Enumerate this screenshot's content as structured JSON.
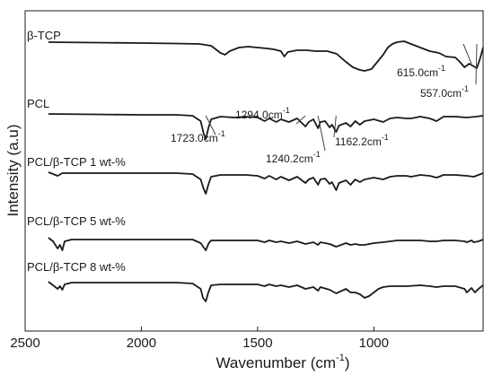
{
  "chart_data": {
    "type": "line",
    "title": "",
    "xlabel": "Wavenumber",
    "xlabel_unit": "cm",
    "xlabel_unit_exp": "-1",
    "ylabel": "Intensity (a.u)",
    "xlim": [
      2500,
      530
    ],
    "x_reversed": true,
    "xticks": [
      2500,
      2000,
      1500,
      1000
    ],
    "xtick_labels": [
      "2500",
      "2000",
      "1500",
      "1000"
    ],
    "grid": false,
    "series": [
      {
        "name": "β-TCP",
        "points": [
          [
            2400,
            0
          ],
          [
            2200,
            0.5
          ],
          [
            2000,
            1
          ],
          [
            1850,
            1.5
          ],
          [
            1750,
            2
          ],
          [
            1700,
            4
          ],
          [
            1660,
            12
          ],
          [
            1640,
            14
          ],
          [
            1620,
            10
          ],
          [
            1580,
            6
          ],
          [
            1540,
            5
          ],
          [
            1500,
            6
          ],
          [
            1460,
            7
          ],
          [
            1430,
            8
          ],
          [
            1400,
            10
          ],
          [
            1385,
            16
          ],
          [
            1370,
            11
          ],
          [
            1330,
            9
          ],
          [
            1290,
            9
          ],
          [
            1250,
            10
          ],
          [
            1200,
            10
          ],
          [
            1160,
            13
          ],
          [
            1120,
            22
          ],
          [
            1090,
            28
          ],
          [
            1060,
            31
          ],
          [
            1040,
            32
          ],
          [
            1010,
            30
          ],
          [
            985,
            22
          ],
          [
            960,
            14
          ],
          [
            940,
            6
          ],
          [
            920,
            2
          ],
          [
            900,
            0
          ],
          [
            870,
            -1
          ],
          [
            840,
            2
          ],
          [
            800,
            6
          ],
          [
            760,
            10
          ],
          [
            720,
            12
          ],
          [
            690,
            16
          ],
          [
            650,
            17
          ],
          [
            630,
            22
          ],
          [
            610,
            28
          ],
          [
            590,
            24
          ],
          [
            570,
            27
          ],
          [
            557,
            29
          ],
          [
            545,
            20
          ],
          [
            530,
            6
          ]
        ]
      },
      {
        "name": "PCL",
        "points": [
          [
            2400,
            0
          ],
          [
            2200,
            0.5
          ],
          [
            2000,
            1
          ],
          [
            1850,
            1
          ],
          [
            1780,
            2
          ],
          [
            1745,
            8
          ],
          [
            1732,
            22
          ],
          [
            1723,
            28
          ],
          [
            1712,
            16
          ],
          [
            1700,
            6
          ],
          [
            1660,
            3
          ],
          [
            1600,
            4
          ],
          [
            1550,
            3
          ],
          [
            1500,
            4
          ],
          [
            1470,
            8
          ],
          [
            1450,
            5
          ],
          [
            1420,
            9
          ],
          [
            1400,
            6
          ],
          [
            1365,
            9
          ],
          [
            1330,
            5
          ],
          [
            1294,
            14
          ],
          [
            1280,
            9
          ],
          [
            1260,
            6
          ],
          [
            1240,
            16
          ],
          [
            1230,
            9
          ],
          [
            1210,
            8
          ],
          [
            1190,
            15
          ],
          [
            1180,
            12
          ],
          [
            1162,
            20
          ],
          [
            1150,
            13
          ],
          [
            1120,
            10
          ],
          [
            1100,
            14
          ],
          [
            1080,
            8
          ],
          [
            1060,
            12
          ],
          [
            1040,
            8
          ],
          [
            1000,
            6
          ],
          [
            960,
            9
          ],
          [
            930,
            5
          ],
          [
            900,
            4
          ],
          [
            860,
            5
          ],
          [
            840,
            5
          ],
          [
            800,
            3
          ],
          [
            760,
            5
          ],
          [
            730,
            8
          ],
          [
            700,
            3
          ],
          [
            650,
            3
          ],
          [
            600,
            4
          ],
          [
            560,
            3
          ],
          [
            530,
            2
          ]
        ]
      },
      {
        "name": "PCL/β-TCP 1 wt-%",
        "points": [
          [
            2400,
            0
          ],
          [
            2380,
            2
          ],
          [
            2360,
            4
          ],
          [
            2340,
            1
          ],
          [
            2200,
            1
          ],
          [
            2000,
            1
          ],
          [
            1850,
            1
          ],
          [
            1780,
            2
          ],
          [
            1745,
            8
          ],
          [
            1733,
            18
          ],
          [
            1723,
            24
          ],
          [
            1712,
            14
          ],
          [
            1700,
            5
          ],
          [
            1660,
            3
          ],
          [
            1600,
            3
          ],
          [
            1550,
            3
          ],
          [
            1500,
            4
          ],
          [
            1470,
            7
          ],
          [
            1450,
            4
          ],
          [
            1420,
            8
          ],
          [
            1400,
            5
          ],
          [
            1365,
            9
          ],
          [
            1330,
            5
          ],
          [
            1294,
            12
          ],
          [
            1280,
            8
          ],
          [
            1260,
            6
          ],
          [
            1240,
            14
          ],
          [
            1230,
            8
          ],
          [
            1210,
            7
          ],
          [
            1190,
            13
          ],
          [
            1180,
            11
          ],
          [
            1162,
            20
          ],
          [
            1150,
            12
          ],
          [
            1120,
            9
          ],
          [
            1100,
            14
          ],
          [
            1080,
            8
          ],
          [
            1060,
            11
          ],
          [
            1040,
            8
          ],
          [
            1000,
            6
          ],
          [
            960,
            8
          ],
          [
            930,
            5
          ],
          [
            900,
            4
          ],
          [
            860,
            4
          ],
          [
            840,
            5
          ],
          [
            800,
            3
          ],
          [
            760,
            4
          ],
          [
            730,
            6
          ],
          [
            700,
            3
          ],
          [
            650,
            3
          ],
          [
            600,
            4
          ],
          [
            570,
            5
          ],
          [
            550,
            3
          ],
          [
            530,
            1
          ]
        ]
      },
      {
        "name": "PCL/β-TCP 5 wt-%",
        "points": [
          [
            2400,
            0
          ],
          [
            2380,
            4
          ],
          [
            2360,
            12
          ],
          [
            2350,
            8
          ],
          [
            2340,
            14
          ],
          [
            2330,
            4
          ],
          [
            2300,
            2
          ],
          [
            2200,
            2
          ],
          [
            2000,
            2
          ],
          [
            1850,
            2
          ],
          [
            1780,
            2
          ],
          [
            1745,
            6
          ],
          [
            1723,
            14
          ],
          [
            1710,
            6
          ],
          [
            1700,
            3
          ],
          [
            1660,
            3
          ],
          [
            1600,
            3
          ],
          [
            1500,
            3
          ],
          [
            1470,
            5
          ],
          [
            1450,
            3
          ],
          [
            1420,
            5
          ],
          [
            1400,
            4
          ],
          [
            1365,
            6
          ],
          [
            1330,
            4
          ],
          [
            1294,
            7
          ],
          [
            1260,
            5
          ],
          [
            1240,
            8
          ],
          [
            1230,
            5
          ],
          [
            1190,
            7
          ],
          [
            1162,
            10
          ],
          [
            1120,
            6
          ],
          [
            1100,
            8
          ],
          [
            1080,
            7
          ],
          [
            1060,
            8
          ],
          [
            1040,
            8
          ],
          [
            1020,
            7
          ],
          [
            1000,
            6
          ],
          [
            960,
            5
          ],
          [
            900,
            3
          ],
          [
            860,
            3
          ],
          [
            800,
            3
          ],
          [
            760,
            4
          ],
          [
            730,
            4
          ],
          [
            700,
            3
          ],
          [
            650,
            3
          ],
          [
            610,
            4
          ],
          [
            600,
            5
          ],
          [
            580,
            3
          ],
          [
            570,
            5
          ],
          [
            550,
            4
          ],
          [
            530,
            2
          ]
        ]
      },
      {
        "name": "PCL/β-TCP 8 wt-%",
        "points": [
          [
            2400,
            0
          ],
          [
            2380,
            4
          ],
          [
            2360,
            8
          ],
          [
            2350,
            5
          ],
          [
            2340,
            9
          ],
          [
            2330,
            3
          ],
          [
            2300,
            1
          ],
          [
            2200,
            1
          ],
          [
            2000,
            1
          ],
          [
            1850,
            1
          ],
          [
            1780,
            2
          ],
          [
            1745,
            8
          ],
          [
            1735,
            18
          ],
          [
            1723,
            22
          ],
          [
            1712,
            12
          ],
          [
            1700,
            4
          ],
          [
            1660,
            3
          ],
          [
            1600,
            3
          ],
          [
            1500,
            3
          ],
          [
            1470,
            5
          ],
          [
            1450,
            3
          ],
          [
            1420,
            5
          ],
          [
            1400,
            4
          ],
          [
            1365,
            6
          ],
          [
            1330,
            4
          ],
          [
            1294,
            8
          ],
          [
            1260,
            6
          ],
          [
            1240,
            10
          ],
          [
            1230,
            6
          ],
          [
            1190,
            9
          ],
          [
            1162,
            13
          ],
          [
            1120,
            8
          ],
          [
            1100,
            12
          ],
          [
            1080,
            12
          ],
          [
            1060,
            14
          ],
          [
            1040,
            18
          ],
          [
            1020,
            16
          ],
          [
            1000,
            12
          ],
          [
            980,
            8
          ],
          [
            960,
            6
          ],
          [
            930,
            5
          ],
          [
            900,
            5
          ],
          [
            860,
            5
          ],
          [
            800,
            4
          ],
          [
            760,
            5
          ],
          [
            730,
            6
          ],
          [
            700,
            5
          ],
          [
            650,
            5
          ],
          [
            610,
            8
          ],
          [
            600,
            12
          ],
          [
            580,
            7
          ],
          [
            565,
            12
          ],
          [
            550,
            8
          ],
          [
            530,
            4
          ]
        ]
      }
    ],
    "annotations": [
      {
        "text": "615.0cm",
        "sup": "-1",
        "series": "β-TCP",
        "x": 615
      },
      {
        "text": "557.0cm",
        "sup": "-1",
        "series": "β-TCP",
        "x": 557
      },
      {
        "text": "1723.0cm",
        "sup": "-1",
        "series": "PCL",
        "x": 1723
      },
      {
        "text": "1294.0cm",
        "sup": "-1",
        "series": "PCL",
        "x": 1294
      },
      {
        "text": "1240.2cm",
        "sup": "-1",
        "series": "PCL",
        "x": 1240.2
      },
      {
        "text": "1162.2cm",
        "sup": "-1",
        "series": "PCL",
        "x": 1162.2
      }
    ]
  }
}
